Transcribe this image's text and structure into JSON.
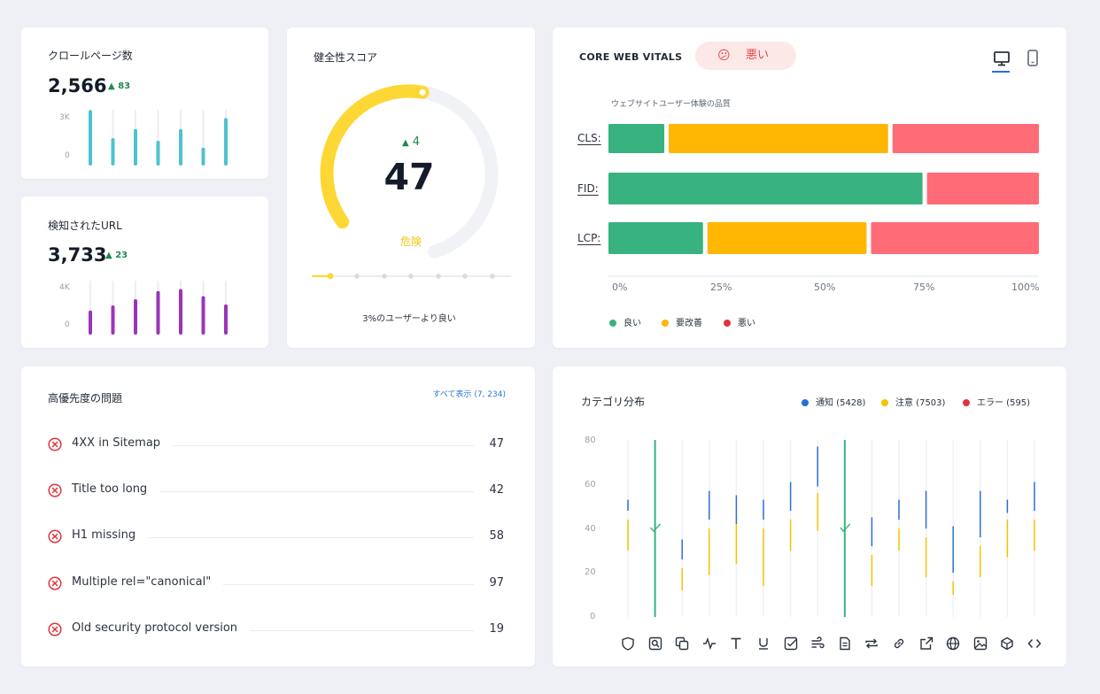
{
  "crawled": {
    "title": "クロールページ数",
    "value": "2,566",
    "delta": "83",
    "axis_top": "3K",
    "axis_bottom": "0",
    "color": "#4cc3cf",
    "bars": [
      0.98,
      0.45,
      0.62,
      0.4,
      0.62,
      0.27,
      0.83
    ]
  },
  "detected": {
    "title": "検知されたURL",
    "value": "3,733",
    "delta": "23",
    "axis_top": "4K",
    "axis_bottom": "0",
    "color": "#9b34b8",
    "bars": [
      0.4,
      0.5,
      0.62,
      0.78,
      0.82,
      0.68,
      0.52
    ]
  },
  "health": {
    "title": "健全性スコア",
    "score": "47",
    "delta": "4",
    "status": "危険",
    "footer": "3%のユーザーより良い",
    "color": "#fdd835",
    "fraction": 0.47
  },
  "cwv": {
    "title": "CORE WEB VITALS",
    "badge": "悪い",
    "badge_emoji": "😕",
    "subtitle": "ウェブサイトユーザー体験の品質",
    "device_icons": [
      "desktop-icon",
      "mobile-icon"
    ],
    "colors": {
      "good": "#38b380",
      "improve": "#ffb703",
      "poor": "#ff6b77"
    },
    "chart_data": {
      "type": "bar",
      "orientation": "horizontal-stacked",
      "categories": [
        "CLS:",
        "FID:",
        "LCP:"
      ],
      "series": [
        {
          "name": "良い",
          "values": [
            14,
            74,
            23
          ]
        },
        {
          "name": "要改善",
          "values": [
            52,
            0,
            38
          ]
        },
        {
          "name": "悪い",
          "values": [
            34,
            26,
            39
          ]
        }
      ],
      "xticks": [
        "0%",
        "25%",
        "50%",
        "75%",
        "100%"
      ],
      "xlim": [
        0,
        100
      ],
      "legend": [
        "良い",
        "要改善",
        "悪い"
      ],
      "legend_colors": [
        "#38b380",
        "#ffb703",
        "#e0343e"
      ]
    }
  },
  "issues": {
    "title": "高優先度の問題",
    "view_all": "すべて表示 (7, 234)",
    "items": [
      {
        "name": "4XX in Sitemap",
        "count": "47"
      },
      {
        "name": "Title too long",
        "count": "42"
      },
      {
        "name": "H1 missing",
        "count": "58"
      },
      {
        "name": "Multiple rel=\"canonical\"",
        "count": "97"
      },
      {
        "name": "Old security protocol version",
        "count": "19"
      }
    ]
  },
  "category": {
    "title": "カテゴリ分布",
    "legend": [
      {
        "label": "通知 (5428)",
        "color": "#2b6fd6"
      },
      {
        "label": "注意 (7503)",
        "color": "#f5c400"
      },
      {
        "label": "エラー (595)",
        "color": "#e0343e"
      }
    ],
    "yticks": [
      "80",
      "60",
      "40",
      "20",
      "0"
    ],
    "check_color": "#38b380",
    "icons": [
      "shield-icon",
      "search-icon",
      "copy-icon",
      "pulse-icon",
      "text-icon",
      "underline-icon",
      "checkbox-icon",
      "wind-icon",
      "document-icon",
      "repeat-icon",
      "link-icon",
      "external-link-icon",
      "globe-icon",
      "image-icon",
      "cube-icon",
      "code-icon"
    ],
    "chart_data": {
      "type": "bar",
      "ylim": [
        0,
        80
      ],
      "series": [
        {
          "name": "通知 (5428)",
          "segments": [
            [
              53,
              48
            ],
            null,
            [
              35,
              26
            ],
            [
              57,
              44
            ],
            [
              55,
              42
            ],
            [
              53,
              44
            ],
            [
              61,
              48
            ],
            [
              77,
              59
            ],
            null,
            [
              45,
              32
            ],
            [
              53,
              44
            ],
            [
              57,
              40
            ],
            [
              41,
              20
            ],
            [
              57,
              36
            ],
            [
              53,
              47
            ],
            [
              61,
              48
            ]
          ]
        },
        {
          "name": "注意 (7503)",
          "segments": [
            [
              44,
              30
            ],
            null,
            [
              22,
              12
            ],
            [
              40,
              19
            ],
            [
              42,
              24
            ],
            [
              40,
              14
            ],
            [
              44,
              30
            ],
            [
              56,
              39
            ],
            null,
            [
              28,
              14
            ],
            [
              40,
              30
            ],
            [
              36,
              18
            ],
            [
              16,
              10
            ],
            [
              32,
              18
            ],
            [
              44,
              27
            ],
            [
              44,
              30
            ]
          ]
        },
        {
          "name": "check",
          "segments": [
            null,
            [
              80,
              0
            ],
            null,
            null,
            null,
            null,
            null,
            null,
            [
              80,
              0
            ],
            null,
            null,
            null,
            null,
            null,
            null,
            null
          ]
        }
      ]
    }
  }
}
